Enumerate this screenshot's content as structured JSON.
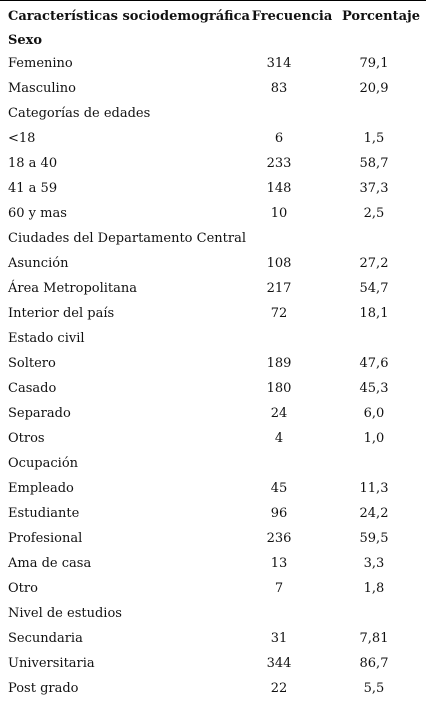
{
  "headers": {
    "col1": "Características sociodemográficas",
    "col2": "Frecuencia",
    "col3": "Porcentaje"
  },
  "rows": [
    {
      "label": "Sexo",
      "freq": "",
      "pct": "",
      "type": "section-bold"
    },
    {
      "label": "Femenino",
      "freq": "314",
      "pct": "79,1",
      "type": "data"
    },
    {
      "label": "Masculino",
      "freq": "83",
      "pct": "20,9",
      "type": "data"
    },
    {
      "label": "Categorías de edades",
      "freq": "",
      "pct": "",
      "type": "section"
    },
    {
      "label": "<18",
      "freq": "6",
      "pct": "1,5",
      "type": "data"
    },
    {
      "label": "18 a 40",
      "freq": "233",
      "pct": "58,7",
      "type": "data"
    },
    {
      "label": "41 a 59",
      "freq": "148",
      "pct": "37,3",
      "type": "data"
    },
    {
      "label": "60 y mas",
      "freq": "10",
      "pct": "2,5",
      "type": "data"
    },
    {
      "label": "Ciudades del Departamento Central",
      "freq": "",
      "pct": "",
      "type": "section"
    },
    {
      "label": "Asunción",
      "freq": "108",
      "pct": "27,2",
      "type": "data"
    },
    {
      "label": "Área Metropolitana",
      "freq": "217",
      "pct": "54,7",
      "type": "data"
    },
    {
      "label": "Interior del país",
      "freq": "72",
      "pct": "18,1",
      "type": "data"
    },
    {
      "label": "Estado civil",
      "freq": "",
      "pct": "",
      "type": "section"
    },
    {
      "label": "Soltero",
      "freq": "189",
      "pct": "47,6",
      "type": "data"
    },
    {
      "label": "Casado",
      "freq": "180",
      "pct": "45,3",
      "type": "data"
    },
    {
      "label": "Separado",
      "freq": "24",
      "pct": "6,0",
      "type": "data"
    },
    {
      "label": "Otros",
      "freq": "4",
      "pct": "1,0",
      "type": "data"
    },
    {
      "label": "Ocupación",
      "freq": "",
      "pct": "",
      "type": "section"
    },
    {
      "label": "Empleado",
      "freq": "45",
      "pct": "11,3",
      "type": "data"
    },
    {
      "label": "Estudiante",
      "freq": "96",
      "pct": "24,2",
      "type": "data"
    },
    {
      "label": "Profesional",
      "freq": "236",
      "pct": "59,5",
      "type": "data"
    },
    {
      "label": "Ama de casa",
      "freq": "13",
      "pct": "3,3",
      "type": "data"
    },
    {
      "label": "Otro",
      "freq": "7",
      "pct": "1,8",
      "type": "data"
    },
    {
      "label": "Nivel de estudios",
      "freq": "",
      "pct": "",
      "type": "section"
    },
    {
      "label": "Secundaria",
      "freq": "31",
      "pct": "7,81",
      "type": "data"
    },
    {
      "label": "Universitaria",
      "freq": "344",
      "pct": "86,7",
      "type": "data"
    },
    {
      "label": "Post grado",
      "freq": "22",
      "pct": "5,5",
      "type": "data"
    }
  ]
}
